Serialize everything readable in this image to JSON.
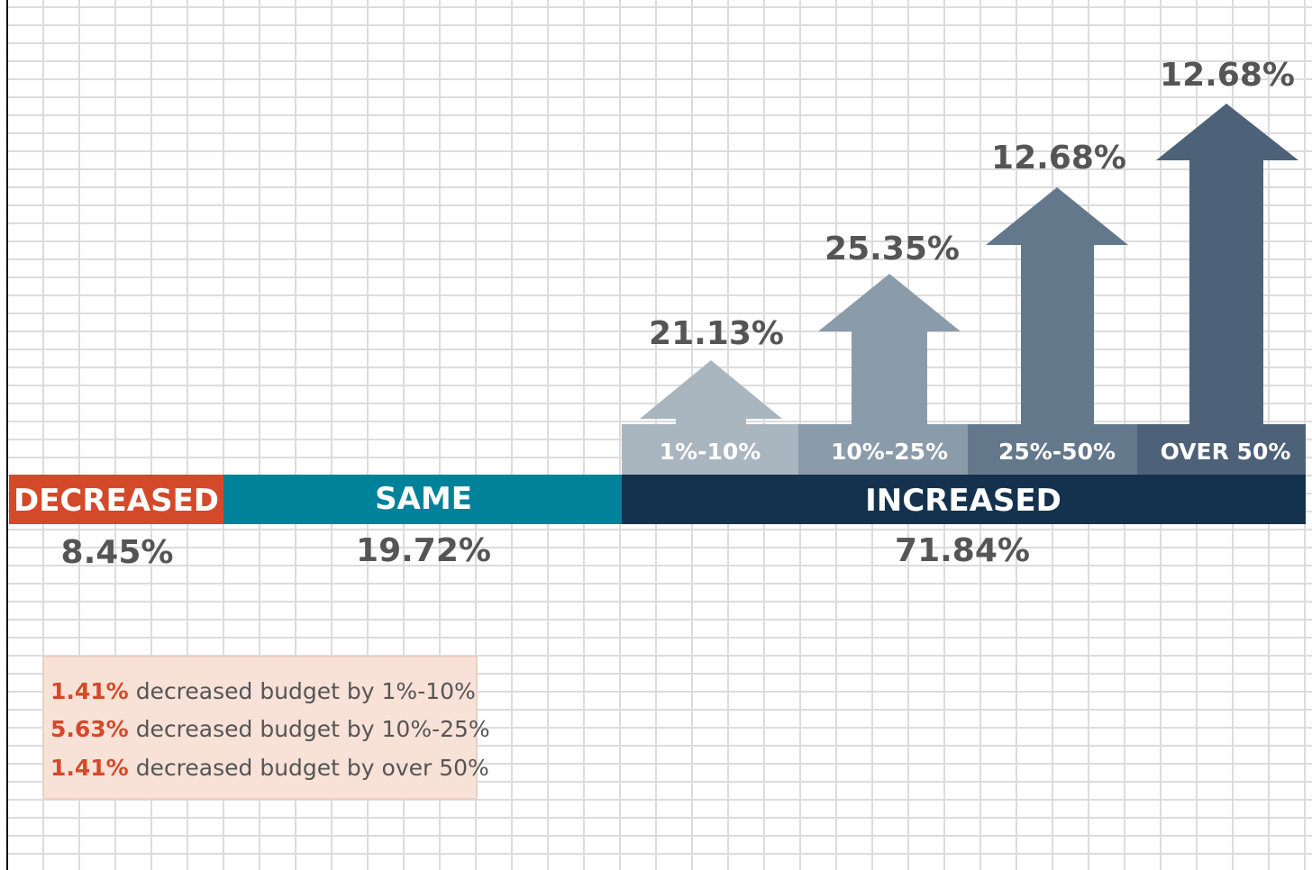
{
  "categories": [
    {
      "label": "DECREASED",
      "value": "8.45%"
    },
    {
      "label": "SAME",
      "value": "19.72%"
    },
    {
      "label": "INCREASED",
      "value": "71.84%"
    }
  ],
  "increase_breakdown": [
    {
      "label": "1%-10%",
      "value": "21.13%"
    },
    {
      "label": "10%-25%",
      "value": "25.35%"
    },
    {
      "label": "25%-50%",
      "value": "12.68%"
    },
    {
      "label": "OVER 50%",
      "value": "12.68%"
    }
  ],
  "decrease_notes": [
    {
      "value": "1.41%",
      "text": "decreased budget by 1%-10%"
    },
    {
      "value": "5.63%",
      "text": "decreased budget by 10%-25%"
    },
    {
      "value": "1.41%",
      "text": "decreased budget by over 50%"
    }
  ]
}
